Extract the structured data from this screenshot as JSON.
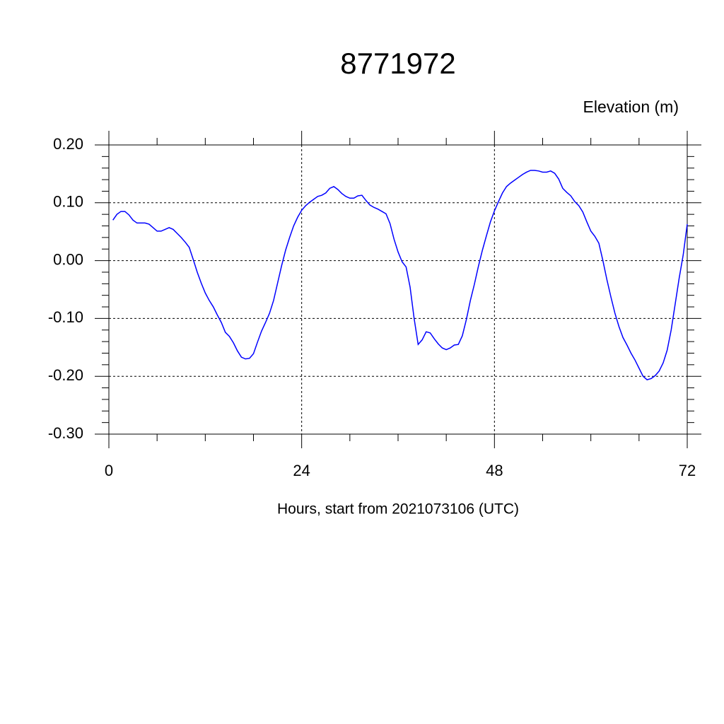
{
  "chart_data": {
    "type": "line",
    "title": "8771972",
    "subtitle": "Elevation (m)",
    "x_label": "Hours, start from 2021073106 (UTC)",
    "x": [
      0.5,
      1,
      1.5,
      2,
      2.5,
      3,
      3.5,
      4,
      4.5,
      5,
      5.5,
      6,
      6.5,
      7,
      7.5,
      8,
      8.5,
      9,
      9.5,
      10,
      10.5,
      11,
      11.5,
      12,
      12.5,
      13,
      13.5,
      14,
      14.5,
      15,
      15.5,
      16,
      16.5,
      17,
      17.5,
      18,
      18.5,
      19,
      19.5,
      20,
      20.5,
      21,
      21.5,
      22,
      22.5,
      23,
      23.5,
      24,
      24.5,
      25,
      25.5,
      26,
      26.5,
      27,
      27.5,
      28,
      28.5,
      29,
      29.5,
      30,
      30.5,
      31,
      31.5,
      32,
      32.5,
      33,
      33.5,
      34,
      34.5,
      35,
      35.5,
      36,
      36.5,
      37,
      37.5,
      38,
      38.5,
      39,
      39.5,
      40,
      40.5,
      41,
      41.5,
      42,
      42.5,
      43,
      43.5,
      44,
      44.5,
      45,
      45.5,
      46,
      46.5,
      47,
      47.5,
      48,
      48.5,
      49,
      49.5,
      50,
      50.5,
      51,
      51.5,
      52,
      52.5,
      53,
      53.5,
      54,
      54.5,
      55,
      55.5,
      56,
      56.5,
      57,
      57.5,
      58,
      58.5,
      59,
      59.5,
      60,
      60.5,
      61,
      61.5,
      62,
      62.5,
      63,
      63.5,
      64,
      64.5,
      65,
      65.5,
      66,
      66.5,
      67,
      67.5,
      68,
      68.5,
      69,
      69.5,
      70,
      70.5,
      71,
      71.5,
      72
    ],
    "series": [
      {
        "name": "Elevation",
        "color": "#0000ff",
        "values": [
          0.07,
          0.08,
          0.085,
          0.085,
          0.079,
          0.07,
          0.065,
          0.065,
          0.065,
          0.063,
          0.057,
          0.051,
          0.051,
          0.054,
          0.057,
          0.054,
          0.047,
          0.04,
          0.032,
          0.023,
          0.002,
          -0.02,
          -0.039,
          -0.056,
          -0.069,
          -0.08,
          -0.094,
          -0.107,
          -0.124,
          -0.131,
          -0.142,
          -0.156,
          -0.167,
          -0.17,
          -0.169,
          -0.161,
          -0.141,
          -0.122,
          -0.107,
          -0.091,
          -0.069,
          -0.039,
          -0.009,
          0.018,
          0.04,
          0.06,
          0.075,
          0.087,
          0.095,
          0.101,
          0.106,
          0.111,
          0.113,
          0.117,
          0.125,
          0.128,
          0.123,
          0.116,
          0.111,
          0.108,
          0.108,
          0.112,
          0.113,
          0.104,
          0.096,
          0.092,
          0.089,
          0.085,
          0.081,
          0.064,
          0.037,
          0.015,
          -0.002,
          -0.011,
          -0.046,
          -0.1,
          -0.145,
          -0.137,
          -0.123,
          -0.125,
          -0.135,
          -0.144,
          -0.151,
          -0.154,
          -0.151,
          -0.146,
          -0.145,
          -0.13,
          -0.102,
          -0.069,
          -0.041,
          -0.01,
          0.018,
          0.043,
          0.067,
          0.086,
          0.102,
          0.117,
          0.128,
          0.134,
          0.139,
          0.144,
          0.149,
          0.153,
          0.156,
          0.156,
          0.155,
          0.153,
          0.153,
          0.155,
          0.151,
          0.141,
          0.125,
          0.118,
          0.112,
          0.102,
          0.095,
          0.084,
          0.067,
          0.051,
          0.042,
          0.03,
          0.0,
          -0.033,
          -0.063,
          -0.091,
          -0.114,
          -0.133,
          -0.146,
          -0.16,
          -0.172,
          -0.186,
          -0.2,
          -0.206,
          -0.204,
          -0.199,
          -0.191,
          -0.177,
          -0.155,
          -0.12,
          -0.075,
          -0.03,
          0.01,
          0.063
        ]
      }
    ],
    "xlim": [
      0,
      72
    ],
    "xticks": [
      0,
      24,
      48,
      72
    ],
    "xminorticks": [
      6,
      12,
      18,
      30,
      36,
      42,
      54,
      60,
      66
    ],
    "ylim": [
      -0.3,
      0.2
    ],
    "yticks": [
      {
        "value": 0.2,
        "label": "0.20"
      },
      {
        "value": 0.1,
        "label": "0.10"
      },
      {
        "value": 0,
        "label": "0.00"
      },
      {
        "value": -0.1,
        "label": "-0.10"
      },
      {
        "value": -0.2,
        "label": "-0.20"
      },
      {
        "value": -0.3,
        "label": "-0.30"
      }
    ],
    "yminorticks": [
      0.18,
      0.16,
      0.14,
      0.12,
      0.08,
      0.06,
      0.04,
      0.02,
      -0.02,
      -0.04,
      -0.06,
      -0.08,
      -0.12,
      -0.14,
      -0.16,
      -0.18,
      -0.22,
      -0.24,
      -0.26,
      -0.28
    ],
    "grid": true
  }
}
